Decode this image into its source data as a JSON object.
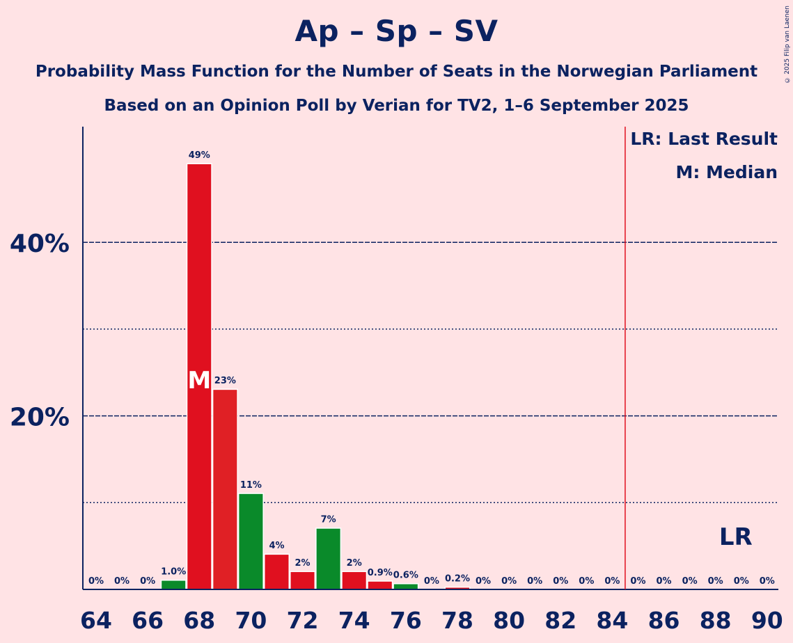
{
  "header": {
    "title": "Ap – Sp – SV",
    "subtitle_line1": "Probability Mass Function for the Number of Seats in the Norwegian Parliament",
    "subtitle_line2": "Based on an Opinion Poll by Verian for TV2, 1–6 September 2025",
    "copyright": "© 2025 Filip van Laenen"
  },
  "legend": {
    "last_result": "LR: Last Result",
    "median": "M: Median"
  },
  "colors": {
    "background": "#FFE3E5",
    "text": "#0B2260",
    "red": "#E0101F",
    "red_light": "#E02025",
    "green": "#0A8A2A",
    "threshold_line": "#E0101F"
  },
  "chart_data": {
    "type": "bar",
    "x": [
      64,
      65,
      66,
      67,
      68,
      69,
      70,
      71,
      72,
      73,
      74,
      75,
      76,
      77,
      78,
      79,
      80,
      81,
      82,
      83,
      84,
      85,
      86,
      87,
      88,
      89,
      90
    ],
    "values": [
      0,
      0,
      0,
      1.0,
      49,
      23,
      11,
      4,
      2,
      7,
      2,
      0.9,
      0.6,
      0,
      0.2,
      0,
      0,
      0,
      0,
      0,
      0,
      0,
      0,
      0,
      0,
      0,
      0
    ],
    "value_labels": [
      "0%",
      "0%",
      "0%",
      "1.0%",
      "49%",
      "23%",
      "11%",
      "4%",
      "2%",
      "7%",
      "2%",
      "0.9%",
      "0.6%",
      "0%",
      "0.2%",
      "0%",
      "0%",
      "0%",
      "0%",
      "0%",
      "0%",
      "0%",
      "0%",
      "0%",
      "0%",
      "0%",
      "0%"
    ],
    "bar_colors": [
      "red",
      "red",
      "red",
      "green",
      "red",
      "red_light",
      "green",
      "red",
      "red",
      "green",
      "red",
      "red",
      "green",
      "red",
      "red",
      "red",
      "red",
      "red",
      "red",
      "red",
      "red",
      "red",
      "red",
      "red",
      "red",
      "red",
      "red"
    ],
    "x_tick_labels": [
      "64",
      "66",
      "68",
      "70",
      "72",
      "74",
      "76",
      "78",
      "80",
      "82",
      "84",
      "86",
      "88",
      "90"
    ],
    "y_tick_labels": [
      "20%",
      "40%"
    ],
    "ylim": [
      0,
      53
    ],
    "major_gridlines": [
      20,
      40
    ],
    "minor_gridlines": [
      10,
      30
    ],
    "majority_threshold": 84.5,
    "median_seat": 68,
    "median_marker": "M",
    "last_result_seat": 89,
    "last_result_marker": "LR"
  }
}
